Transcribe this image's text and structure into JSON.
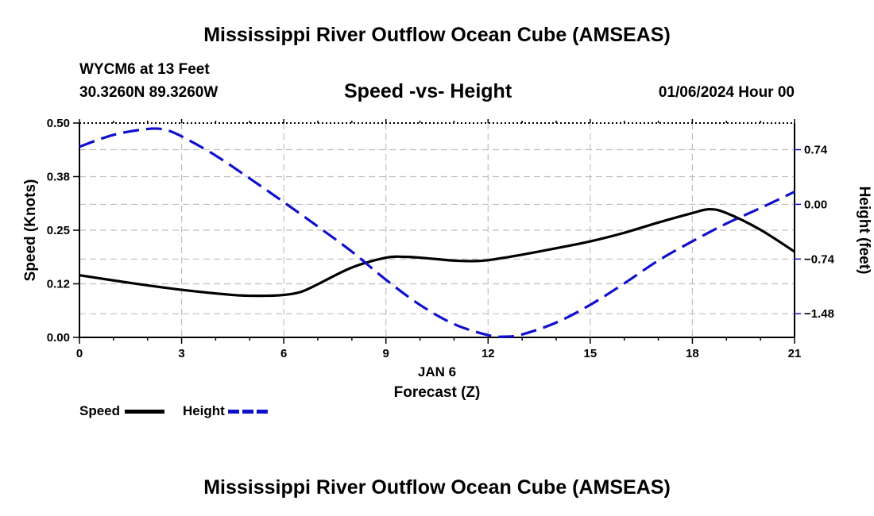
{
  "page": {
    "title_top": "Mississippi River Outflow Ocean Cube (AMSEAS)",
    "title_bottom": "Mississippi River Outflow Ocean Cube (AMSEAS)",
    "station_line": "WYCM6 at 13 Feet",
    "coords_line": "30.3260N  89.3260W",
    "chart_title": "Speed -vs- Height",
    "date_line": "01/06/2024 Hour 00"
  },
  "legend": {
    "speed_label": "Speed",
    "height_label": "Height",
    "speed_color": "#000000",
    "height_color": "#1010cc"
  },
  "chart_data": {
    "type": "line",
    "title": "Speed -vs- Height",
    "xlabel": "Forecast (Z)",
    "xlabel_date": "JAN 6",
    "ylabel_left": "Speed (Knots)",
    "ylabel_right": "Height (feet)",
    "xlim": [
      0,
      21
    ],
    "ylim_left": [
      0,
      0.5
    ],
    "ylim_right": [
      -1.8,
      1.1
    ],
    "x_ticks": [
      0,
      3,
      6,
      9,
      12,
      15,
      18,
      21
    ],
    "x_tick_labels": [
      "0",
      "3",
      "6",
      "9",
      "12",
      "15",
      "18",
      "21"
    ],
    "y_left_ticks": [
      0.0,
      0.125,
      0.25,
      0.375,
      0.5
    ],
    "y_left_tick_labels": [
      "0.00",
      "0.12",
      "0.25",
      "0.38",
      "0.50"
    ],
    "y_right_ticks": [
      0.74,
      0.0,
      -0.74,
      -1.48
    ],
    "y_right_tick_labels": [
      "0.74",
      "0.00",
      "−0.74",
      "−1.48"
    ],
    "grid": true,
    "series": [
      {
        "name": "Speed",
        "axis": "left",
        "color": "#000000",
        "dash": "solid",
        "x": [
          0,
          1.5,
          3,
          4.5,
          5.3,
          6,
          6.5,
          7,
          8,
          9,
          9.5,
          10,
          11,
          11.5,
          12,
          13,
          14,
          15,
          16,
          17,
          18,
          18.5,
          19,
          20,
          21
        ],
        "values": [
          0.145,
          0.127,
          0.111,
          0.099,
          0.097,
          0.099,
          0.106,
          0.124,
          0.163,
          0.186,
          0.188,
          0.186,
          0.179,
          0.178,
          0.18,
          0.193,
          0.208,
          0.224,
          0.244,
          0.268,
          0.29,
          0.299,
          0.29,
          0.251,
          0.2
        ]
      },
      {
        "name": "Height",
        "axis": "right",
        "color": "#1010cc",
        "dash": "dashed",
        "x": [
          0,
          1,
          2,
          2.5,
          3,
          4,
          5,
          6,
          7,
          8,
          9,
          10,
          11,
          12,
          12.5,
          13,
          14,
          15,
          16,
          17,
          18,
          19,
          20,
          21
        ],
        "values": [
          0.78,
          0.94,
          1.02,
          1.01,
          0.92,
          0.66,
          0.35,
          0.03,
          -0.3,
          -0.64,
          -1.02,
          -1.36,
          -1.62,
          -1.77,
          -1.79,
          -1.76,
          -1.6,
          -1.36,
          -1.07,
          -0.76,
          -0.5,
          -0.26,
          -0.05,
          0.17
        ]
      }
    ]
  }
}
